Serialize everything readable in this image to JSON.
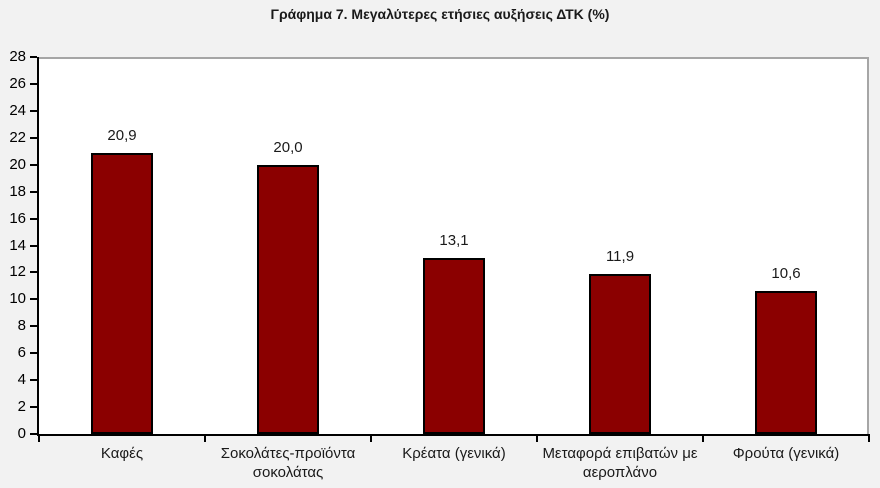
{
  "chart_data": {
    "type": "bar",
    "title": "Γράφημα 7. Μεγαλύτερες ετήσιες αυξήσεις ΔΤΚ (%)",
    "categories": [
      "Καφές",
      "Σοκολάτες-προϊόντα σοκολάτας",
      "Κρέατα (γενικά)",
      "Μεταφορά επιβατών με αεροπλάνο",
      "Φρούτα (γενικά)"
    ],
    "values": [
      20.9,
      20.0,
      13.1,
      11.9,
      10.6
    ],
    "value_labels": [
      "20,9",
      "20,0",
      "13,1",
      "11,9",
      "10,6"
    ],
    "xlabel": "",
    "ylabel": "",
    "ylim": [
      0,
      28
    ],
    "ytick_step": 2,
    "grid": false,
    "legend": "none",
    "colors": {
      "bar_fill": "#8B0000",
      "bar_border": "#000000",
      "axis_line": "#000000",
      "plot_border": "#A6A6A6",
      "plot_bg": "#FFFFFF",
      "page_bg": "#F2F2F2",
      "text": "#1a1a1a"
    }
  }
}
